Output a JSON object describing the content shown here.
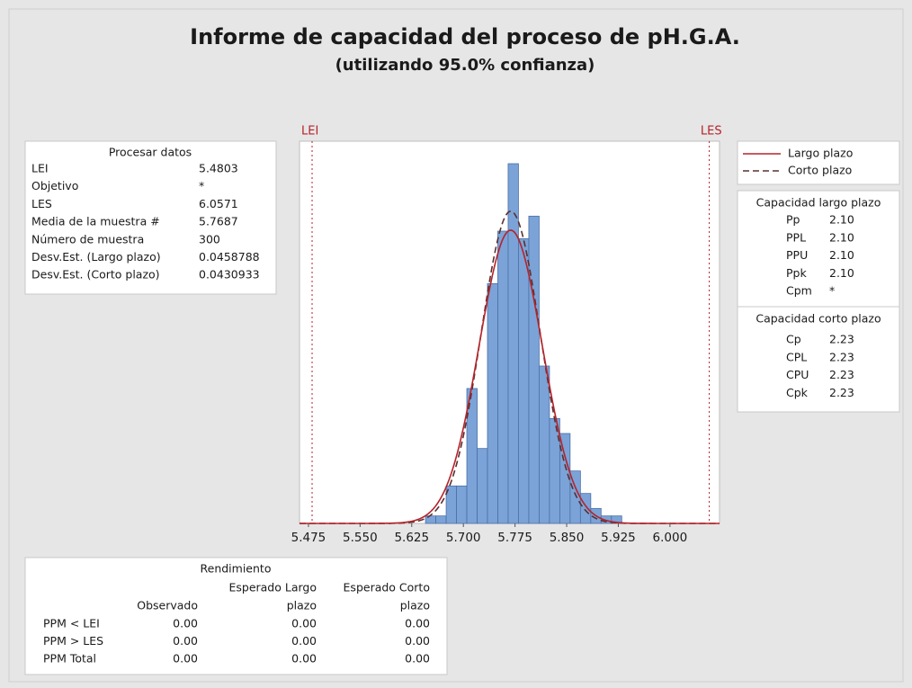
{
  "title": "Informe de capacidad del proceso de pH.G.A.",
  "subtitle": "(utilizando 95.0% confianza)",
  "process_data": {
    "header": "Procesar datos",
    "rows": [
      [
        "LEI",
        5.4803
      ],
      [
        "Objetivo",
        "*"
      ],
      [
        "LES",
        6.0571
      ],
      [
        "Media de la muestra #",
        5.7687
      ],
      [
        "Número de muestra",
        300
      ],
      [
        "Desv.Est. (Largo plazo)",
        0.0458788
      ],
      [
        "Desv.Est. (Corto plazo)",
        0.0430933
      ]
    ]
  },
  "chart_data": {
    "type": "histogram",
    "bins": [
      5.645,
      5.66,
      5.675,
      5.69,
      5.705,
      5.72,
      5.735,
      5.75,
      5.765,
      5.78,
      5.795,
      5.81,
      5.825,
      5.84,
      5.855,
      5.87,
      5.885,
      5.9,
      5.915,
      5.93
    ],
    "values": [
      1,
      1,
      5,
      5,
      18,
      10,
      32,
      39,
      48,
      38,
      41,
      21,
      14,
      12,
      7,
      4,
      2,
      1,
      1
    ],
    "color": "#7ba3d8",
    "edge_color": "#4a6fa5",
    "xlim": [
      5.462,
      6.072
    ],
    "xticks": [
      5.475,
      {
        "value": 5.55,
        "label": "5.550"
      },
      5.625,
      {
        "value": 5.7,
        "label": "5.700"
      },
      5.775,
      {
        "value": 5.85,
        "label": "5.850"
      },
      5.925,
      {
        "value": 6.0,
        "label": "6.000"
      }
    ],
    "ylim": [
      0,
      51
    ],
    "spec_color": "#b5232a",
    "legend": [
      {
        "name": "Largo plazo",
        "color": "#b5232a",
        "dash": false
      },
      {
        "name": "Corto plazo",
        "color": "#5a3030",
        "dash": true
      }
    ]
  },
  "long_term": {
    "header": "Capacidad largo plazo",
    "rows": [
      [
        "Pp",
        "2.10"
      ],
      [
        "PPL",
        "2.10"
      ],
      [
        "PPU",
        "2.10"
      ],
      [
        "Ppk",
        "2.10"
      ],
      [
        "Cpm",
        "*"
      ]
    ]
  },
  "short_term": {
    "header": "Capacidad corto plazo",
    "rows": [
      [
        "Cp",
        "2.23"
      ],
      [
        "CPL",
        "2.23"
      ],
      [
        "CPU",
        "2.23"
      ],
      [
        "Cpk",
        "2.23"
      ]
    ]
  },
  "performance": {
    "header": "Rendimiento",
    "columns": [
      [
        "Observado"
      ],
      [
        "Esperado Largo",
        "plazo"
      ],
      [
        "Esperado Corto",
        "plazo"
      ]
    ],
    "rows": [
      [
        "PPM < LEI",
        "0.00",
        "0.00",
        "0.00"
      ],
      [
        "PPM > LES",
        "0.00",
        "0.00",
        "0.00"
      ],
      [
        "PPM Total",
        "0.00",
        "0.00",
        "0.00"
      ]
    ]
  }
}
